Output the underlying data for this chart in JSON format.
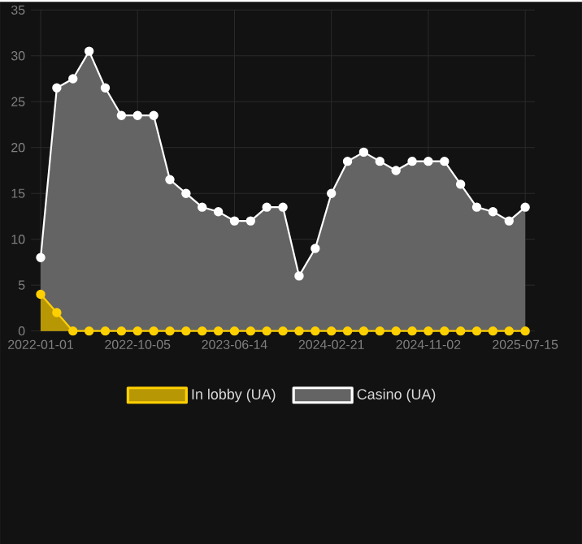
{
  "chart_data": {
    "type": "area",
    "categories": [
      "2022-01-01",
      null,
      null,
      null,
      null,
      null,
      "2022-10-05",
      null,
      null,
      null,
      null,
      null,
      "2023-06-14",
      null,
      null,
      null,
      null,
      null,
      "2024-02-21",
      null,
      null,
      null,
      null,
      null,
      "2024-11-02",
      null,
      null,
      null,
      null,
      null,
      "2025-07-15"
    ],
    "series": [
      {
        "name": "In lobby (UA)",
        "color": "#ffd000",
        "values": [
          4,
          2,
          0,
          0,
          0,
          0,
          0,
          0,
          0,
          0,
          0,
          0,
          0,
          0,
          0,
          0,
          0,
          0,
          0,
          0,
          0,
          0,
          0,
          0,
          0,
          0,
          0,
          0,
          0,
          0,
          0
        ]
      },
      {
        "name": "Casino (UA)",
        "color": "#ffffff",
        "values": [
          8,
          26.5,
          27.5,
          30.5,
          26.5,
          23.5,
          23.5,
          23.5,
          16.5,
          15,
          13.5,
          13,
          12,
          12,
          13.5,
          13.5,
          6,
          9,
          15,
          18.5,
          19.5,
          18.5,
          17.5,
          18.5,
          18.5,
          18.5,
          16,
          13.5,
          13,
          12,
          13.5
        ]
      }
    ],
    "ylim": [
      0,
      35
    ],
    "yticks": [
      0,
      5,
      10,
      15,
      20,
      25,
      30,
      35
    ],
    "grid": true,
    "legend": "bottom",
    "marker": "circle"
  }
}
